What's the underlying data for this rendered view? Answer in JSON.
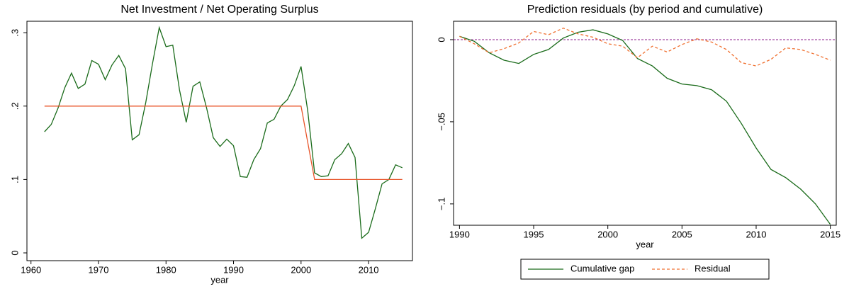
{
  "chart_data": [
    {
      "type": "line",
      "title": "Net Investment / Net Operating Surplus",
      "x_label": "year",
      "xlim": [
        1959.4,
        2016.5
      ],
      "xticks": [
        1960,
        1970,
        1980,
        1990,
        2000,
        2010
      ],
      "ylim": [
        -0.0106,
        0.3156
      ],
      "yticks": [
        0,
        {
          "value": 0.1,
          "label": ".1"
        },
        {
          "value": 0.2,
          "label": ".2"
        },
        {
          "value": 0.3,
          "label": ".3"
        }
      ],
      "series": [
        {
          "color": "#1a6b1a",
          "dash": "solid",
          "x": [
            1962,
            1963,
            1964,
            1965,
            1966,
            1967,
            1968,
            1969,
            1970,
            1971,
            1972,
            1973,
            1974,
            1975,
            1976,
            1977,
            1978,
            1979,
            1980,
            1981,
            1982,
            1983,
            1984,
            1985,
            1986,
            1987,
            1988,
            1989,
            1990,
            1991,
            1992,
            1993,
            1994,
            1995,
            1996,
            1997,
            1998,
            1999,
            2000,
            2001,
            2002,
            2003,
            2004,
            2005,
            2006,
            2007,
            2008,
            2009,
            2010,
            2011,
            2012,
            2013,
            2014,
            2015
          ],
          "values": [
            0.165,
            0.175,
            0.197,
            0.225,
            0.245,
            0.224,
            0.23,
            0.262,
            0.257,
            0.236,
            0.256,
            0.269,
            0.251,
            0.154,
            0.161,
            0.205,
            0.258,
            0.307,
            0.281,
            0.283,
            0.222,
            0.178,
            0.227,
            0.233,
            0.198,
            0.157,
            0.145,
            0.155,
            0.146,
            0.104,
            0.103,
            0.127,
            0.142,
            0.177,
            0.182,
            0.2,
            0.209,
            0.228,
            0.254,
            0.193,
            0.109,
            0.104,
            0.105,
            0.127,
            0.135,
            0.149,
            0.13,
            0.02,
            0.028,
            0.06,
            0.094,
            0.1,
            0.12,
            0.116
          ]
        },
        {
          "color": "#e8552a",
          "dash": "solid",
          "x": [
            1962,
            2000,
            2002,
            2015
          ],
          "values": [
            0.2,
            0.2,
            0.1,
            0.1
          ]
        }
      ]
    },
    {
      "type": "line",
      "title": "Prediction residuals (by period and cumulative)",
      "x_label": "year",
      "xlim": [
        1989.6,
        2015.4
      ],
      "xticks": [
        1990,
        1995,
        2000,
        2005,
        2010,
        2015
      ],
      "ylim": [
        -0.113,
        0.0112
      ],
      "yticks": [
        0,
        {
          "value": -0.05,
          "label": "−.05"
        },
        {
          "value": -0.1,
          "label": "−.1"
        }
      ],
      "reference_line": {
        "value": 0,
        "color": "#8b1a8b"
      },
      "legend": "bottom",
      "series": [
        {
          "name": "Cumulative gap",
          "color": "#1a6b1a",
          "dash": "solid",
          "x": [
            1990,
            1991,
            1992,
            1993,
            1994,
            1995,
            1996,
            1997,
            1998,
            1999,
            2000,
            2001,
            2002,
            2003,
            2004,
            2005,
            2006,
            2007,
            2008,
            2009,
            2010,
            2011,
            2012,
            2013,
            2014,
            2015
          ],
          "values": [
            0.002,
            -0.001,
            -0.008,
            -0.0125,
            -0.0145,
            -0.009,
            -0.006,
            0.001,
            0.0045,
            0.006,
            0.0035,
            -0.0005,
            -0.0115,
            -0.016,
            -0.0235,
            -0.027,
            -0.028,
            -0.0305,
            -0.0375,
            -0.051,
            -0.066,
            -0.079,
            -0.084,
            -0.091,
            -0.1,
            -0.1125
          ]
        },
        {
          "name": "Residual",
          "color": "#f07030",
          "dash": "dashed",
          "x": [
            1990,
            1991,
            1992,
            1993,
            1994,
            1995,
            1996,
            1997,
            1998,
            1999,
            2000,
            2001,
            2002,
            2003,
            2004,
            2005,
            2006,
            2007,
            2008,
            2009,
            2010,
            2011,
            2012,
            2013,
            2014,
            2015
          ],
          "values": [
            0.002,
            -0.0025,
            -0.008,
            -0.0055,
            -0.002,
            0.005,
            0.003,
            0.007,
            0.0035,
            0.0015,
            -0.0025,
            -0.004,
            -0.011,
            -0.004,
            -0.0075,
            -0.003,
            0.0005,
            -0.0015,
            -0.006,
            -0.014,
            -0.016,
            -0.012,
            -0.005,
            -0.006,
            -0.009,
            -0.0125
          ]
        }
      ]
    }
  ]
}
